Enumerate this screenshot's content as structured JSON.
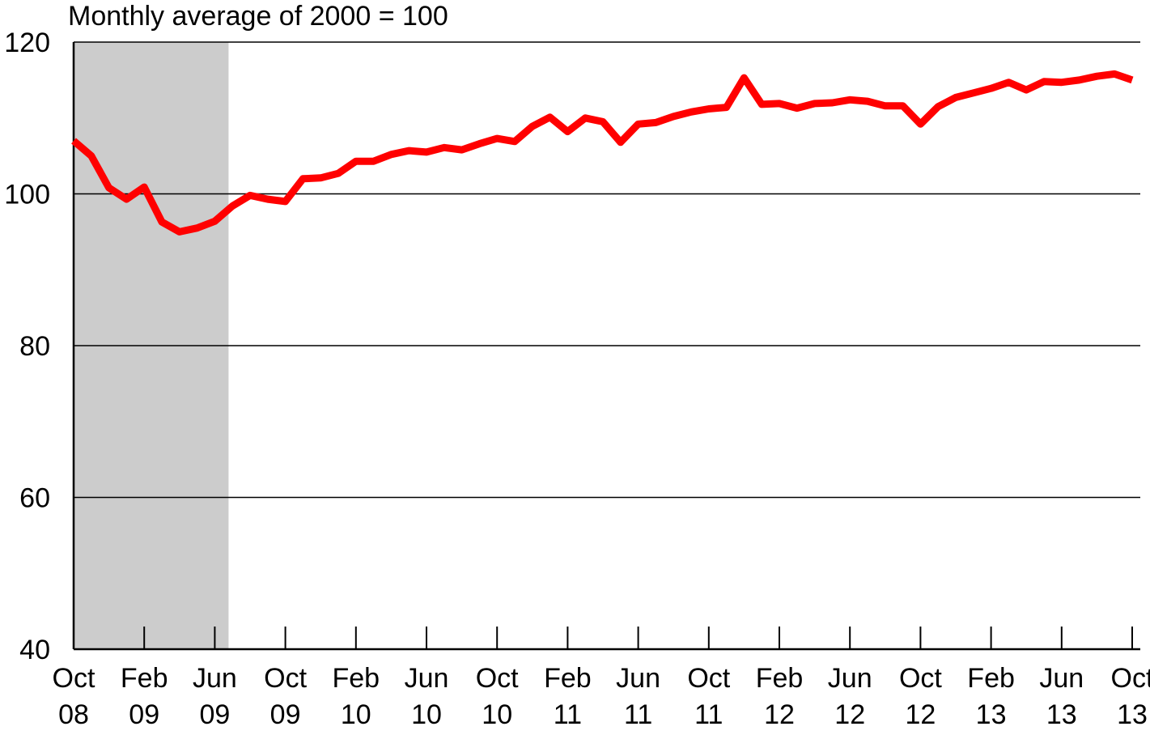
{
  "chart_data": {
    "type": "line",
    "title": "Monthly average of 2000 = 100",
    "xlabel": "",
    "ylabel": "",
    "ylim": [
      40,
      120
    ],
    "yticks": [
      40,
      60,
      80,
      100,
      120
    ],
    "grid": true,
    "recession_shading": {
      "from": "Oct 08",
      "to": "Jun 09",
      "color": "#cccccc"
    },
    "x_tick_labels": [
      {
        "month": "Oct",
        "year": "08"
      },
      {
        "month": "Feb",
        "year": "09"
      },
      {
        "month": "Jun",
        "year": "09"
      },
      {
        "month": "Oct",
        "year": "09"
      },
      {
        "month": "Feb",
        "year": "10"
      },
      {
        "month": "Jun",
        "year": "10"
      },
      {
        "month": "Oct",
        "year": "10"
      },
      {
        "month": "Feb",
        "year": "11"
      },
      {
        "month": "Jun",
        "year": "11"
      },
      {
        "month": "Oct",
        "year": "11"
      },
      {
        "month": "Feb",
        "year": "12"
      },
      {
        "month": "Jun",
        "year": "12"
      },
      {
        "month": "Oct",
        "year": "12"
      },
      {
        "month": "Feb",
        "year": "13"
      },
      {
        "month": "Jun",
        "year": "13"
      },
      {
        "month": "Oct",
        "year": "13"
      }
    ],
    "x": [
      "Oct 08",
      "Nov 08",
      "Dec 08",
      "Jan 09",
      "Feb 09",
      "Mar 09",
      "Apr 09",
      "May 09",
      "Jun 09",
      "Jul 09",
      "Aug 09",
      "Sep 09",
      "Oct 09",
      "Nov 09",
      "Dec 09",
      "Jan 10",
      "Feb 10",
      "Mar 10",
      "Apr 10",
      "May 10",
      "Jun 10",
      "Jul 10",
      "Aug 10",
      "Sep 10",
      "Oct 10",
      "Nov 10",
      "Dec 10",
      "Jan 11",
      "Feb 11",
      "Mar 11",
      "Apr 11",
      "May 11",
      "Jun 11",
      "Jul 11",
      "Aug 11",
      "Sep 11",
      "Oct 11",
      "Nov 11",
      "Dec 11",
      "Jan 12",
      "Feb 12",
      "Mar 12",
      "Apr 12",
      "May 12",
      "Jun 12",
      "Jul 12",
      "Aug 12",
      "Sep 12",
      "Oct 12",
      "Nov 12",
      "Dec 12",
      "Jan 13",
      "Feb 13",
      "Mar 13",
      "Apr 13",
      "May 13",
      "Jun 13",
      "Jul 13",
      "Aug 13",
      "Sep 13",
      "Oct 13"
    ],
    "series": [
      {
        "color": "#ff0000",
        "values": [
          107.0,
          105.0,
          100.8,
          99.3,
          100.9,
          96.3,
          95.0,
          95.5,
          96.4,
          98.4,
          99.8,
          99.3,
          99.0,
          102.0,
          102.1,
          102.7,
          104.3,
          104.3,
          105.2,
          105.7,
          105.5,
          106.1,
          105.8,
          106.6,
          107.3,
          106.9,
          108.9,
          110.1,
          108.2,
          110.0,
          109.5,
          106.8,
          109.2,
          109.4,
          110.2,
          110.8,
          111.2,
          111.4,
          115.3,
          111.8,
          111.9,
          111.3,
          111.9,
          112.0,
          112.4,
          112.2,
          111.6,
          111.6,
          109.2,
          111.5,
          112.7,
          113.3,
          113.9,
          114.7,
          113.7,
          114.8,
          114.7,
          115.0,
          115.5,
          115.8,
          115.0
        ]
      }
    ]
  }
}
